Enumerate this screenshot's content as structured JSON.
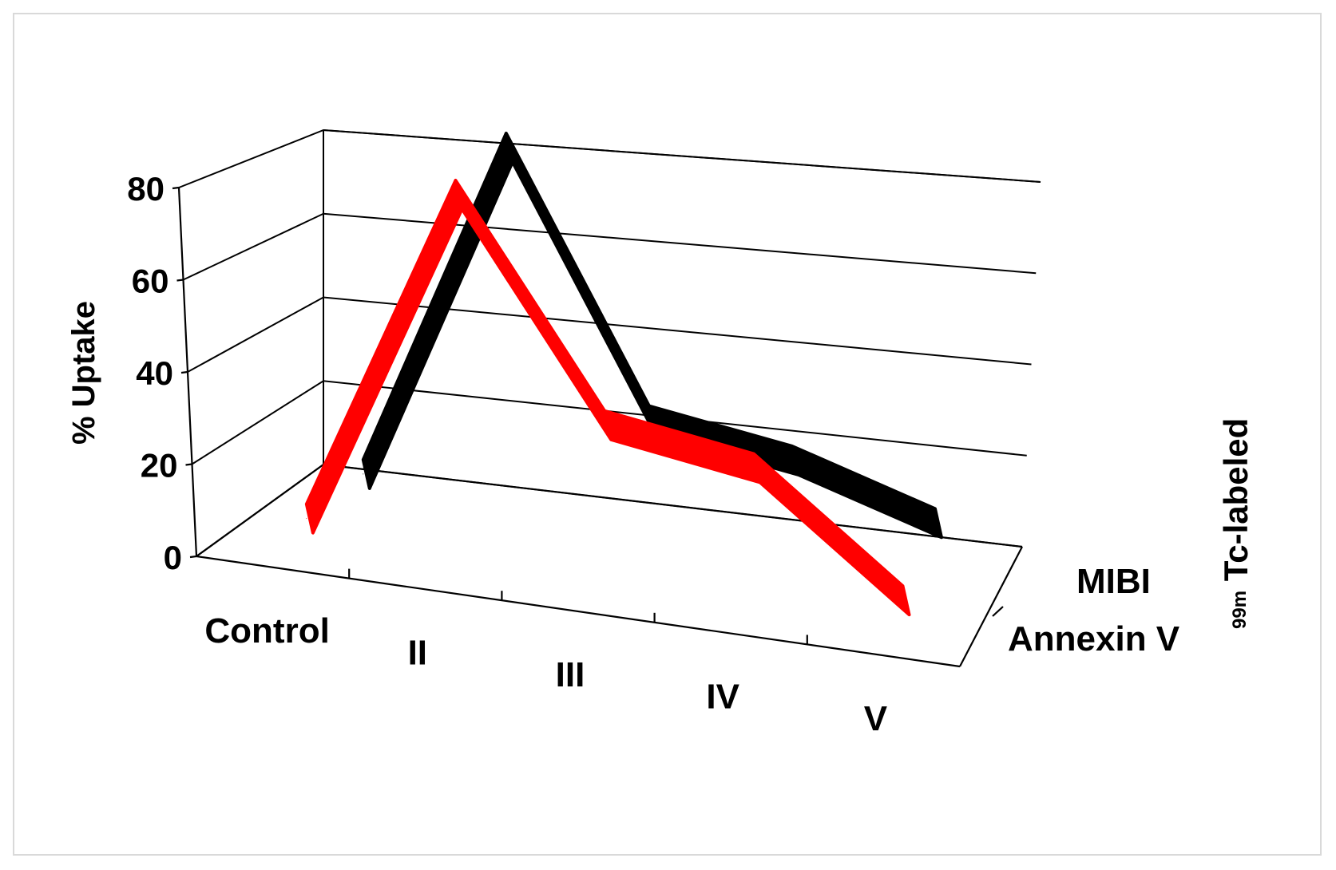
{
  "chart_data": {
    "type": "line",
    "style": "3d",
    "categories": [
      "Control",
      "II",
      "III",
      "IV",
      "V"
    ],
    "series": [
      {
        "name": "MIBI",
        "color": "#000000",
        "values": [
          5,
          82,
          25,
          20,
          10
        ]
      },
      {
        "name": "Annexin V",
        "color": "#ff0000",
        "values": [
          5,
          82,
          35,
          30,
          5
        ]
      }
    ],
    "ylabel": "% Uptake",
    "zlabel_sup": "99m",
    "zlabel": "Tc-labeled",
    "yticks": [
      0,
      20,
      40,
      60,
      80
    ],
    "ylim": [
      0,
      80
    ],
    "grid": true
  }
}
